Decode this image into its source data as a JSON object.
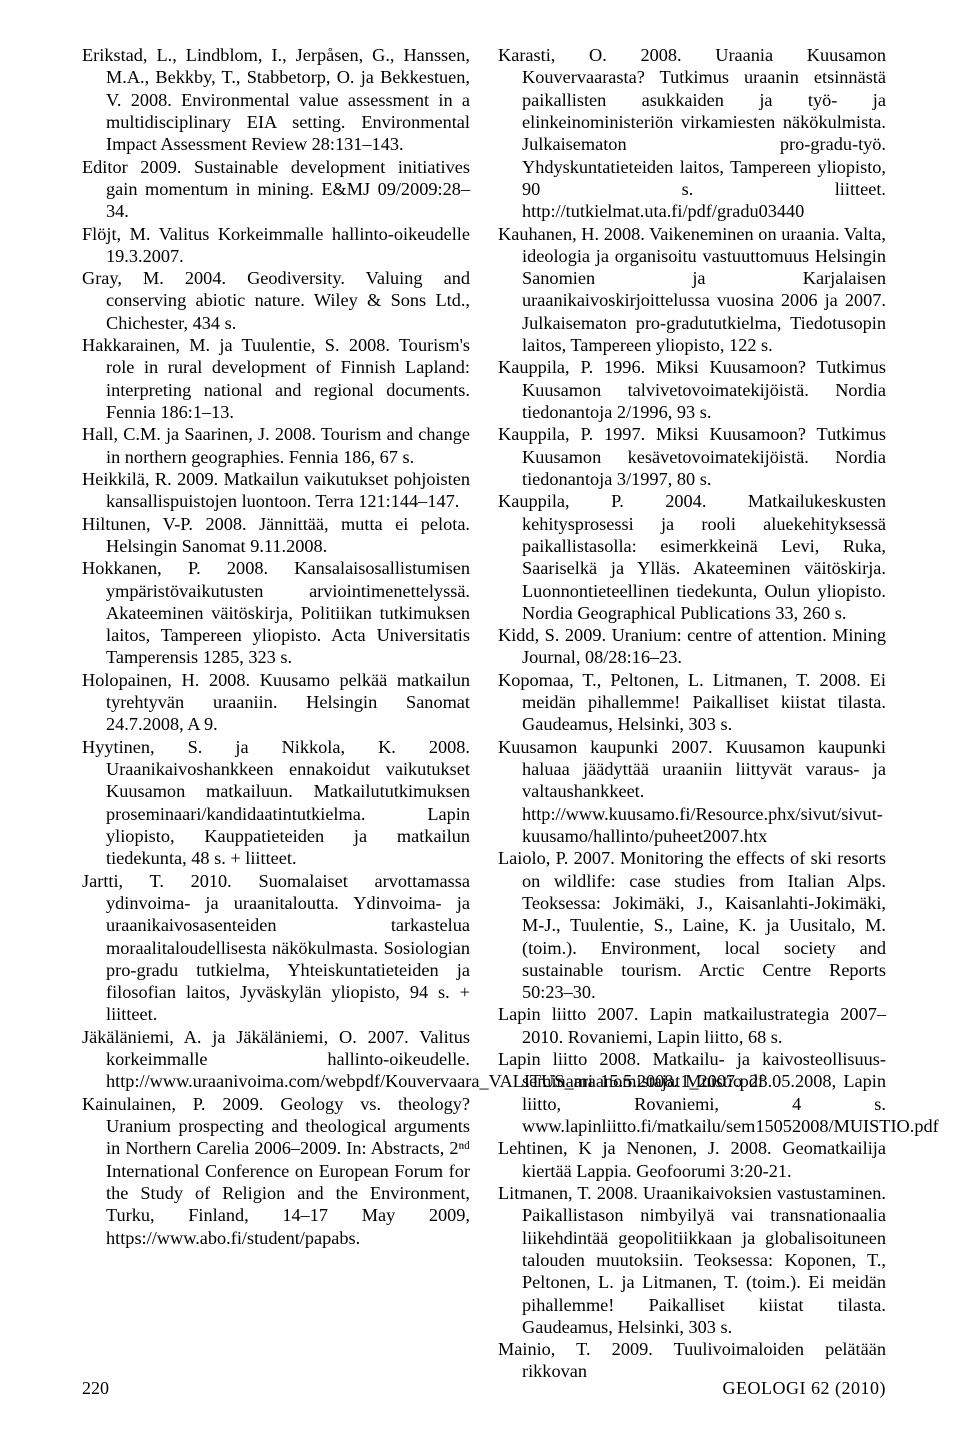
{
  "references": [
    "Erikstad, L., Lindblom, I., Jerpåsen, G., Hanssen, M.A., Bekkby, T., Stabbetorp, O. ja Bekkestuen, V. 2008. Environmental value assessment in a multidisciplinary EIA setting. Environmental Impact Assessment Review 28:131–143.",
    "Editor 2009. Sustainable development initiatives gain momentum in mining. E&MJ 09/2009:28–34.",
    "Flöjt, M. Valitus Korkeimmalle hallinto-oikeudelle 19.3.2007.",
    "Gray, M. 2004. Geodiversity. Valuing and conserving abiotic nature. Wiley & Sons Ltd., Chichester, 434 s.",
    "Hakkarainen, M. ja Tuulentie, S. 2008. Tourism's role in rural development of Finnish Lapland: interpreting national and regional documents. Fennia 186:1–13.",
    "Hall, C.M. ja Saarinen, J. 2008. Tourism and change in northern geographies. Fennia 186, 67 s.",
    "Heikkilä, R. 2009. Matkailun vaikutukset pohjoisten kansallispuistojen luontoon. Terra 121:144–147.",
    "Hiltunen, V-P. 2008. Jännittää, mutta ei pelota. Helsingin Sanomat 9.11.2008.",
    "Hokkanen, P. 2008. Kansalaisosallistumisen ympäristövaikutusten arviointimenettelyssä. Akateeminen väitöskirja, Politiikan tutkimuksen laitos, Tampereen yliopisto. Acta Universitatis Tamperensis 1285, 323 s.",
    "Holopainen, H. 2008. Kuusamo pelkää matkailun tyrehtyvän uraaniin. Helsingin Sanomat 24.7.2008, A 9.",
    "Hyytinen, S. ja Nikkola, K. 2008. Uraanikaivoshankkeen ennakoidut vaikutukset Kuusamon matkailuun. Matkailututkimuksen proseminaari/kandidaatintutkielma. Lapin yliopisto, Kauppatieteiden ja matkailun tiedekunta, 48 s. + liitteet.",
    "Jartti, T. 2010. Suomalaiset arvottamassa ydinvoima- ja uraanitaloutta. Ydinvoima- ja uraanikaivosasenteiden tarkastelua moraalitaloudellisesta näkökulmasta. Sosiologian pro-gradu tutkielma, Yhteiskuntatieteiden ja filosofian laitos, Jyväskylän yliopisto, 94 s. + liitteet.",
    "Jäkäläniemi, A. ja Jäkäläniemi, O. 2007. Valitus korkeimmalle hallinto-oikeudelle. http://www.uraanivoima.com/webpdf/Kouvervaara_VALITUS_maanomistajat1_2007.pdf",
    "Kainulainen, P. 2009. Geology vs. theology? Uranium prospecting and theological arguments in Northern Carelia 2006–2009. In: Abstracts, 2ⁿᵈ International Conference on European Forum for the Study of Religion and the Environment, Turku, Finland, 14–17 May 2009, https://www.abo.fi/student/papabs.",
    "Karasti, O. 2008. Uraania Kuusamon Kouvervaarasta? Tutkimus uraanin etsinnästä paikallisten asukkaiden ja työ- ja elinkeinoministeriön virkamiesten näkökulmista. Julkaisematon pro-gradu-työ. Yhdyskuntatieteiden laitos, Tampereen yliopisto, 90 s. liitteet. http://tutkielmat.uta.fi/pdf/gradu03440",
    "Kauhanen, H. 2008. Vaikeneminen on uraania. Valta, ideologia ja organisoitu vastuuttomuus Helsingin Sanomien ja Karjalaisen uraanikaivoskirjoittelussa vuosina 2006 ja 2007. Julkaisematon pro-gradututkielma, Tiedotusopin laitos, Tampereen yliopisto, 122 s.",
    "Kauppila, P. 1996. Miksi Kuusamoon? Tutkimus Kuusamon talvivetovoimatekijöistä. Nordia tiedonantoja 2/1996, 93 s.",
    "Kauppila, P. 1997. Miksi Kuusamoon? Tutkimus Kuusamon kesävetovoimatekijöistä. Nordia tiedonantoja 3/1997, 80 s.",
    "Kauppila, P. 2004. Matkailukeskusten kehitysprosessi ja rooli aluekehityksessä paikallistasolla: esimerkkeinä Levi, Ruka, Saariselkä ja Ylläs. Akateeminen väitöskirja. Luonnontieteellinen tiedekunta, Oulun yliopisto. Nordia Geographical Publications 33, 260 s.",
    "Kidd, S. 2009. Uranium: centre of attention. Mining Journal, 08/28:16–23.",
    "Kopomaa, T., Peltonen, L. Litmanen, T. 2008. Ei meidän pihallemme! Paikalliset kiistat tilasta. Gaudeamus, Helsinki, 303 s.",
    "Kuusamon kaupunki 2007. Kuusamon kaupunki haluaa jäädyttää uraaniin liittyvät varaus- ja valtaushankkeet. http://www.kuusamo.fi/Resource.phx/sivut/sivut-kuusamo/hallinto/puheet2007.htx",
    "Laiolo, P. 2007. Monitoring the effects of ski resorts on wildlife: case studies from Italian Alps. Teoksessa: Jokimäki, J., Kaisanlahti-Jokimäki, M-J., Tuulentie, S., Laine, K. ja Uusitalo, M. (toim.). Environment, local society and sustainable tourism. Arctic Centre Reports 50:23–30.",
    "Lapin liitto 2007. Lapin matkailustrategia 2007–2010. Rovaniemi, Lapin liitto, 68 s.",
    "Lapin liitto 2008. Matkailu- ja kaivosteollisuus-seminaari 15.5.2008. Muistio 23.05.2008, Lapin liitto, Rovaniemi, 4 s. www.lapinliitto.fi/matkailu/sem15052008/MUISTIO.pdf",
    "Lehtinen, K ja Nenonen, J. 2008. Geomatkailija kiertää Lappia. Geofoorumi 3:20-21.",
    "Litmanen, T. 2008. Uraanikaivoksien vastustaminen. Paikallistason nimbyilyä vai transnationaalia liikehdintää geopolitiikkaan ja globalisoituneen talouden muutoksiin. Teoksessa: Koponen, T., Peltonen, L. ja Litmanen, T. (toim.). Ei meidän pihallemme! Paikalliset kiistat tilasta. Gaudeamus, Helsinki, 303 s.",
    "Mainio, T. 2009. Tuulivoimaloiden pelätään rikkovan"
  ],
  "footer": {
    "page_number": "220",
    "journal": "GEOLOGI 62 (2010)"
  }
}
